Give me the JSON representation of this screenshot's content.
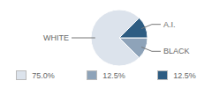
{
  "chart_data": {
    "type": "pie",
    "categories": [
      "WHITE",
      "BLACK",
      "A.I."
    ],
    "values": [
      75,
      12.5,
      12.5
    ],
    "value_labels": [
      "75.0%",
      "12.5%",
      "12.5%"
    ],
    "colors": [
      "#dce3ec",
      "#8ea3b9",
      "#2f5d82"
    ],
    "legend": "bottom"
  }
}
